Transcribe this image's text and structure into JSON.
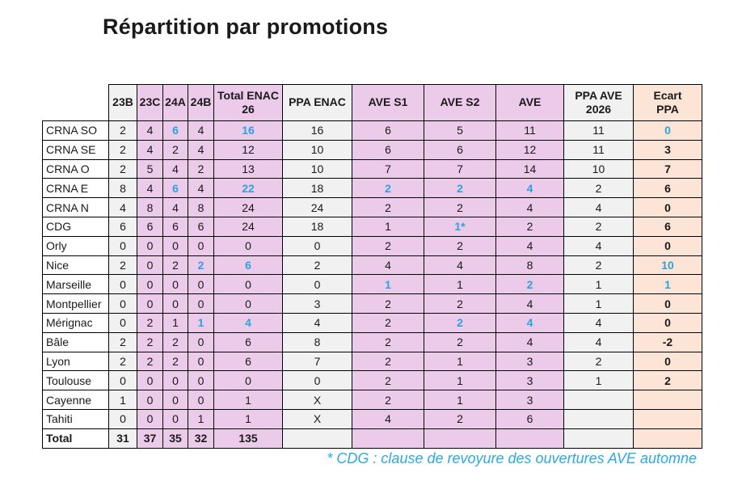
{
  "title": "Répartition par promotions",
  "footnote": "* CDG : clause de revoyure des ouvertures AVE automne",
  "colors": {
    "highlight_blue": "#2ba4dc",
    "footnote_blue": "#29abe2",
    "pink": "#eccaea",
    "gray": "#f2f1f1",
    "orange": "#fce4d6",
    "border": "#000000"
  },
  "table": {
    "columns": [
      {
        "label": "23B",
        "bg": "gray"
      },
      {
        "label": "23C",
        "bg": "pink"
      },
      {
        "label": "24A",
        "bg": "pink"
      },
      {
        "label": "24B",
        "bg": "pink"
      },
      {
        "label": "Total ENAC\n26",
        "bg": "pink"
      },
      {
        "label": "PPA ENAC",
        "bg": "gray"
      },
      {
        "label": "AVE S1",
        "bg": "pink"
      },
      {
        "label": "AVE S2",
        "bg": "pink"
      },
      {
        "label": "AVE",
        "bg": "pink"
      },
      {
        "label": "PPA AVE\n2026",
        "bg": "gray"
      },
      {
        "label": "Ecart\nPPA",
        "bg": "orange",
        "bold_values": true
      }
    ],
    "rows": [
      {
        "label": "CRNA SO",
        "cells": [
          "2",
          "4",
          {
            "v": "6",
            "hl": true
          },
          "4",
          {
            "v": "16",
            "hl": true
          },
          "16",
          "6",
          "5",
          "11",
          "11",
          {
            "v": "0",
            "hl": true
          }
        ]
      },
      {
        "label": "CRNA SE",
        "cells": [
          "2",
          "4",
          "2",
          "4",
          "12",
          "10",
          "6",
          "6",
          "12",
          "11",
          "3"
        ]
      },
      {
        "label": "CRNA O",
        "cells": [
          "2",
          "5",
          "4",
          "2",
          "13",
          "10",
          "7",
          "7",
          "14",
          "10",
          "7"
        ]
      },
      {
        "label": "CRNA E",
        "cells": [
          "8",
          "4",
          {
            "v": "6",
            "hl": true
          },
          "4",
          {
            "v": "22",
            "hl": true
          },
          "18",
          {
            "v": "2",
            "hl": true
          },
          {
            "v": "2",
            "hl": true
          },
          {
            "v": "4",
            "hl": true
          },
          "2",
          "6"
        ]
      },
      {
        "label": "CRNA N",
        "cells": [
          "4",
          "8",
          "4",
          "8",
          "24",
          "24",
          "2",
          "2",
          "4",
          "4",
          "0"
        ]
      },
      {
        "label": "CDG",
        "cells": [
          "6",
          "6",
          "6",
          "6",
          "24",
          "18",
          "1",
          {
            "v": "1*",
            "hl": true
          },
          "2",
          "2",
          "6"
        ]
      },
      {
        "label": "Orly",
        "cells": [
          "0",
          "0",
          "0",
          "0",
          "0",
          "0",
          "2",
          "2",
          "4",
          "4",
          "0"
        ]
      },
      {
        "label": "Nice",
        "cells": [
          "2",
          "0",
          "2",
          {
            "v": "2",
            "hl": true
          },
          {
            "v": "6",
            "hl": true
          },
          "2",
          "4",
          "4",
          "8",
          "2",
          {
            "v": "10",
            "hl": true
          }
        ]
      },
      {
        "label": "Marseille",
        "cells": [
          "0",
          "0",
          "0",
          "0",
          "0",
          "0",
          {
            "v": "1",
            "hl": true
          },
          "1",
          {
            "v": "2",
            "hl": true
          },
          "1",
          {
            "v": "1",
            "hl": true
          }
        ]
      },
      {
        "label": "Montpellier",
        "cells": [
          "0",
          "0",
          "0",
          "0",
          "0",
          "3",
          "2",
          "2",
          "4",
          "1",
          "0"
        ]
      },
      {
        "label": "Mérignac",
        "cells": [
          "0",
          "2",
          "1",
          {
            "v": "1",
            "hl": true
          },
          {
            "v": "4",
            "hl": true
          },
          "4",
          "2",
          {
            "v": "2",
            "hl": true
          },
          {
            "v": "4",
            "hl": true
          },
          "4",
          "0"
        ]
      },
      {
        "label": "Bâle",
        "cells": [
          "2",
          "2",
          "2",
          "0",
          "6",
          "8",
          "2",
          "2",
          "4",
          "4",
          "-2"
        ]
      },
      {
        "label": "Lyon",
        "cells": [
          "2",
          "2",
          "2",
          "0",
          "6",
          "7",
          "2",
          "1",
          "3",
          "2",
          "0"
        ]
      },
      {
        "label": "Toulouse",
        "cells": [
          "0",
          "0",
          "0",
          "0",
          "0",
          "0",
          "2",
          "1",
          "3",
          "1",
          "2"
        ]
      },
      {
        "label": "Cayenne",
        "cells": [
          "1",
          "0",
          "0",
          "0",
          "1",
          "X",
          "2",
          "1",
          "3",
          "",
          ""
        ]
      },
      {
        "label": "Tahiti",
        "cells": [
          "0",
          "0",
          "0",
          "1",
          "1",
          "X",
          "4",
          "2",
          "6",
          "",
          ""
        ]
      },
      {
        "label": "Total",
        "bold": true,
        "cells": [
          "31",
          "37",
          "35",
          "32",
          "135",
          "",
          "",
          "",
          "",
          "",
          ""
        ]
      }
    ]
  }
}
